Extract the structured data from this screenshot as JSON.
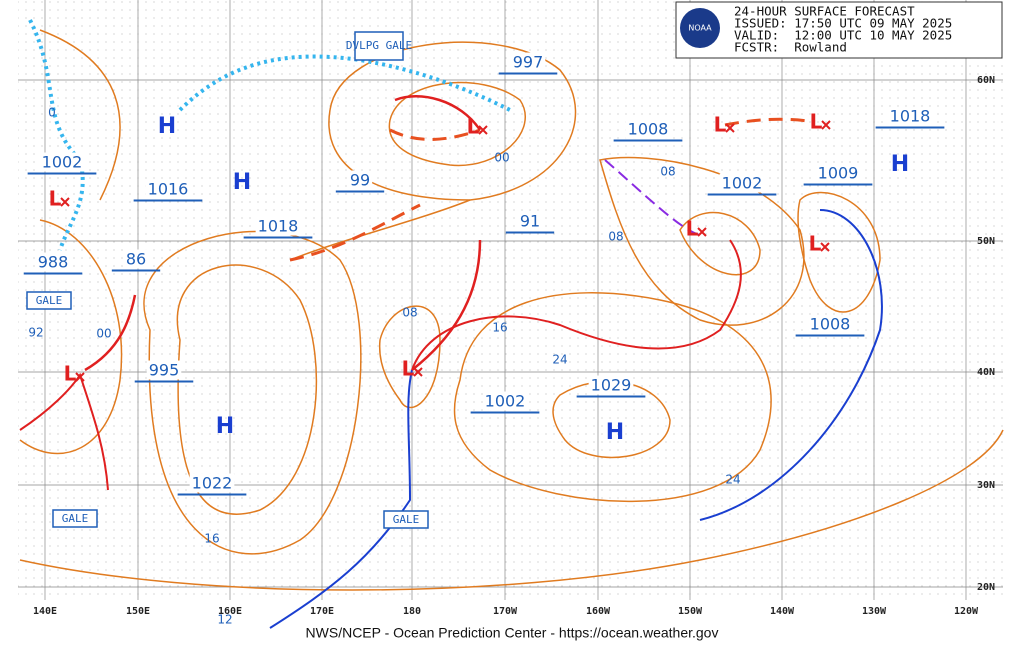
{
  "header": {
    "lines": [
      "24-HOUR SURFACE FORECAST",
      "ISSUED: 17:50 UTC 09 MAY 2025",
      "VALID:  12:00 UTC 10 MAY 2025",
      "FCSTR:  Rowland"
    ],
    "logo": "NOAA"
  },
  "longitudes": [
    "140E",
    "150E",
    "160E",
    "170E",
    "180",
    "170W",
    "160W",
    "150W",
    "140W",
    "130W",
    "120W"
  ],
  "latitudes": [
    "60N",
    "50N",
    "40N",
    "30N",
    "20N"
  ],
  "pressure_labels": [
    "997",
    "1008",
    "1018",
    "1002",
    "1016",
    "1018",
    "99",
    "91",
    "1002",
    "1009",
    "988",
    "86",
    "995",
    "1008",
    "1002",
    "1029",
    "1022"
  ],
  "isobar_labels": [
    "08",
    "16",
    "24",
    "00",
    "08",
    "08",
    "24",
    "16",
    "12",
    "00",
    "92",
    "0"
  ],
  "highs": [
    "H",
    "H",
    "H",
    "H",
    "H"
  ],
  "lows": [
    "L",
    "L",
    "L",
    "L",
    "L",
    "L",
    "L",
    "L"
  ],
  "warnings": [
    "DVLPG GALE",
    "GALE",
    "GALE",
    "GALE"
  ],
  "footer": "NWS/NCEP - Ocean Prediction Center - https://ocean.weather.gov"
}
